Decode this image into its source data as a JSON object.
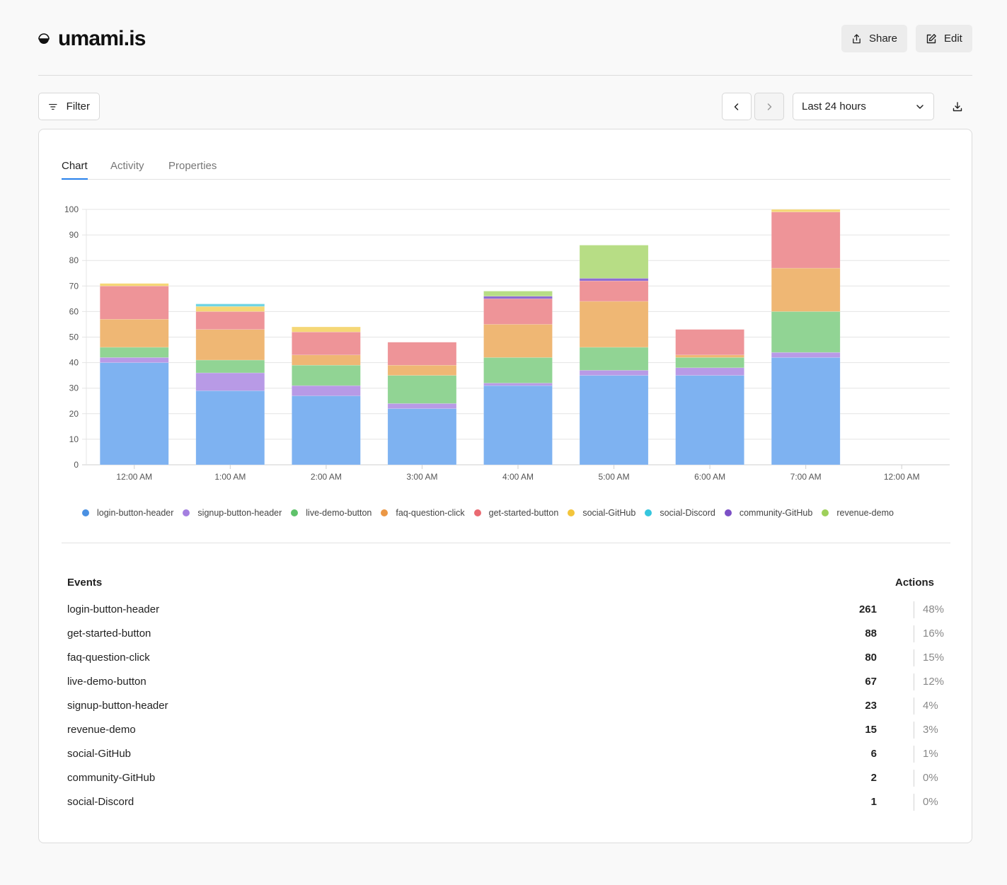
{
  "header": {
    "title": "umami.is",
    "share_label": "Share",
    "edit_label": "Edit"
  },
  "toolbar": {
    "filter_label": "Filter",
    "date_range": "Last 24 hours"
  },
  "tabs": [
    {
      "label": "Chart",
      "active": true
    },
    {
      "label": "Activity",
      "active": false
    },
    {
      "label": "Properties",
      "active": false
    }
  ],
  "chart_data": {
    "type": "bar",
    "stacked": true,
    "categories": [
      "12:00 AM",
      "1:00 AM",
      "2:00 AM",
      "3:00 AM",
      "4:00 AM",
      "5:00 AM",
      "6:00 AM",
      "7:00 AM",
      "12:00 AM"
    ],
    "ylim": [
      0,
      100
    ],
    "yticks": [
      0,
      10,
      20,
      30,
      40,
      50,
      60,
      70,
      80,
      90,
      100
    ],
    "grid": true,
    "legend_position": "bottom",
    "series": [
      {
        "name": "login-button-header",
        "color": "#7eb2f1",
        "values": [
          40,
          29,
          27,
          22,
          31,
          35,
          35,
          42,
          0
        ]
      },
      {
        "name": "signup-button-header",
        "color": "#b89ae6",
        "values": [
          2,
          7,
          4,
          2,
          1,
          2,
          3,
          2,
          0
        ]
      },
      {
        "name": "live-demo-button",
        "color": "#91d494",
        "values": [
          4,
          5,
          8,
          11,
          10,
          9,
          4,
          16,
          0
        ]
      },
      {
        "name": "faq-question-click",
        "color": "#efb774",
        "values": [
          11,
          12,
          4,
          4,
          13,
          18,
          1,
          17,
          0
        ]
      },
      {
        "name": "get-started-button",
        "color": "#ee9498",
        "values": [
          13,
          7,
          9,
          9,
          10,
          8,
          10,
          22,
          0
        ]
      },
      {
        "name": "social-GitHub",
        "color": "#f5d776",
        "values": [
          1,
          2,
          2,
          0,
          0,
          0,
          0,
          1,
          0
        ]
      },
      {
        "name": "social-Discord",
        "color": "#6fd4e4",
        "values": [
          0,
          1,
          0,
          0,
          0,
          0,
          0,
          0,
          0
        ]
      },
      {
        "name": "community-GitHub",
        "color": "#8f6dd2",
        "values": [
          0,
          0,
          0,
          0,
          1,
          1,
          0,
          0,
          0
        ]
      },
      {
        "name": "revenue-demo",
        "color": "#b7dd85",
        "values": [
          0,
          0,
          0,
          0,
          2,
          13,
          0,
          0,
          0
        ]
      }
    ],
    "legend": [
      {
        "label": "login-button-header",
        "color": "#4a90e2"
      },
      {
        "label": "signup-button-header",
        "color": "#a47fe0"
      },
      {
        "label": "live-demo-button",
        "color": "#5fc26a"
      },
      {
        "label": "faq-question-click",
        "color": "#eb9745"
      },
      {
        "label": "get-started-button",
        "color": "#ea6a72"
      },
      {
        "label": "social-GitHub",
        "color": "#f3c53b"
      },
      {
        "label": "social-Discord",
        "color": "#36c6de"
      },
      {
        "label": "community-GitHub",
        "color": "#7c50c6"
      },
      {
        "label": "revenue-demo",
        "color": "#9ed05a"
      }
    ]
  },
  "events_table": {
    "header_events": "Events",
    "header_actions": "Actions",
    "rows": [
      {
        "label": "login-button-header",
        "count": "261",
        "percent": "48%"
      },
      {
        "label": "get-started-button",
        "count": "88",
        "percent": "16%"
      },
      {
        "label": "faq-question-click",
        "count": "80",
        "percent": "15%"
      },
      {
        "label": "live-demo-button",
        "count": "67",
        "percent": "12%"
      },
      {
        "label": "signup-button-header",
        "count": "23",
        "percent": "4%"
      },
      {
        "label": "revenue-demo",
        "count": "15",
        "percent": "3%"
      },
      {
        "label": "social-GitHub",
        "count": "6",
        "percent": "1%"
      },
      {
        "label": "community-GitHub",
        "count": "2",
        "percent": "0%"
      },
      {
        "label": "social-Discord",
        "count": "1",
        "percent": "0%"
      }
    ]
  },
  "icons": {
    "logo": "umami-logo-icon",
    "share": "share-icon",
    "edit": "edit-icon",
    "filter": "filter-icon",
    "prev": "chevron-left-icon",
    "next": "chevron-right-icon",
    "dropdown": "chevron-down-icon",
    "download": "download-icon"
  }
}
